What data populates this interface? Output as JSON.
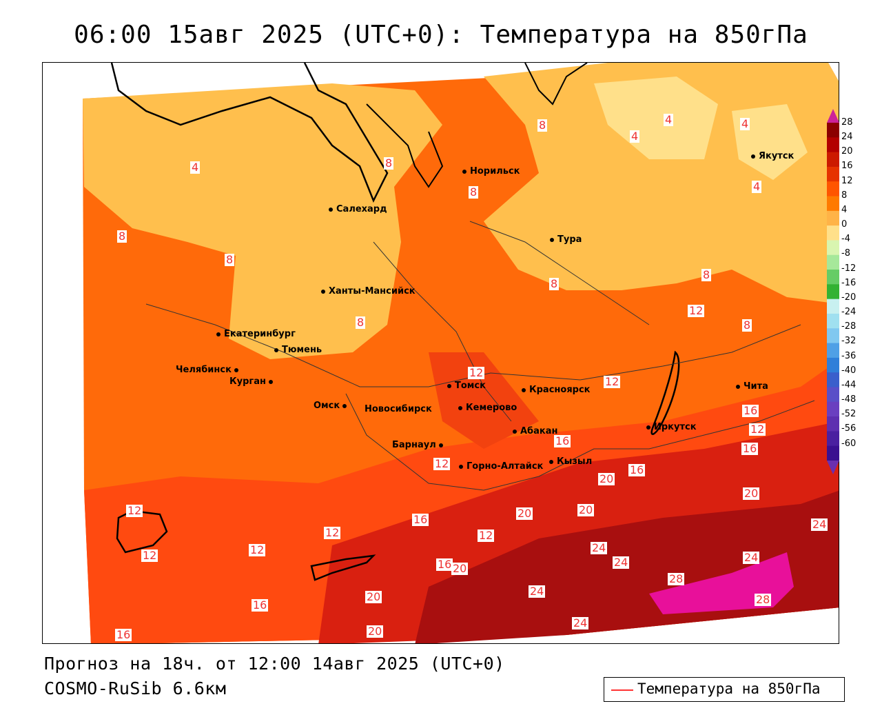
{
  "title": "06:00 15авг 2025 (UTC+0): Температура на 850гПа",
  "footer": {
    "forecast": "Прогноз на 18ч. от 12:00 14авг 2025 (UTC+0)",
    "model": "COSMO-RuSib 6.6км"
  },
  "legend": {
    "label": "Температура на 850гПа",
    "line_color": "#ff3333"
  },
  "colorbar": {
    "levels": [
      "28",
      "24",
      "20",
      "16",
      "12",
      "8",
      "4",
      "0",
      "-4",
      "-8",
      "-12",
      "-16",
      "-20",
      "-24",
      "-28",
      "-32",
      "-36",
      "-40",
      "-44",
      "-48",
      "-52",
      "-56",
      "-60"
    ],
    "colors": [
      "#8b0000",
      "#b30000",
      "#cc1a00",
      "#e63300",
      "#ff5500",
      "#ff7a00",
      "#ffb347",
      "#ffe08a",
      "#d9f5b0",
      "#a6e89a",
      "#66cc66",
      "#33b233",
      "#c8f0f0",
      "#a0e0f0",
      "#80c8f0",
      "#4fa0e6",
      "#2f7fd9",
      "#3a5fcc",
      "#5a4fc8",
      "#6a3fc0",
      "#5e2fb0",
      "#4a20a0",
      "#3a1090"
    ]
  },
  "cities": [
    {
      "name": "Норильск"
    },
    {
      "name": "Якутск"
    },
    {
      "name": "Салехард"
    },
    {
      "name": "Тура"
    },
    {
      "name": "Ханты-Мансийск"
    },
    {
      "name": "Екатеринбург"
    },
    {
      "name": "Тюмень"
    },
    {
      "name": "Челябинск"
    },
    {
      "name": "Курган"
    },
    {
      "name": "Омск"
    },
    {
      "name": "Новосибирск"
    },
    {
      "name": "Томск"
    },
    {
      "name": "Кемерово"
    },
    {
      "name": "Красноярск"
    },
    {
      "name": "Барнаул"
    },
    {
      "name": "Абакан"
    },
    {
      "name": "Горно-Алтайск"
    },
    {
      "name": "Кызыл"
    },
    {
      "name": "Иркутск"
    },
    {
      "name": "Чита"
    }
  ],
  "contour_labels": [
    "8",
    "4",
    "4",
    "4",
    "4",
    "4",
    "8",
    "8",
    "8",
    "8",
    "8",
    "8",
    "8",
    "12",
    "8",
    "12",
    "12",
    "12",
    "16",
    "12",
    "16",
    "16",
    "20",
    "20",
    "20",
    "20",
    "12",
    "12",
    "12",
    "16",
    "12",
    "12",
    "16",
    "20",
    "24",
    "24",
    "24",
    "28",
    "24",
    "24",
    "28",
    "16",
    "20",
    "16",
    "24",
    "20",
    "16"
  ]
}
